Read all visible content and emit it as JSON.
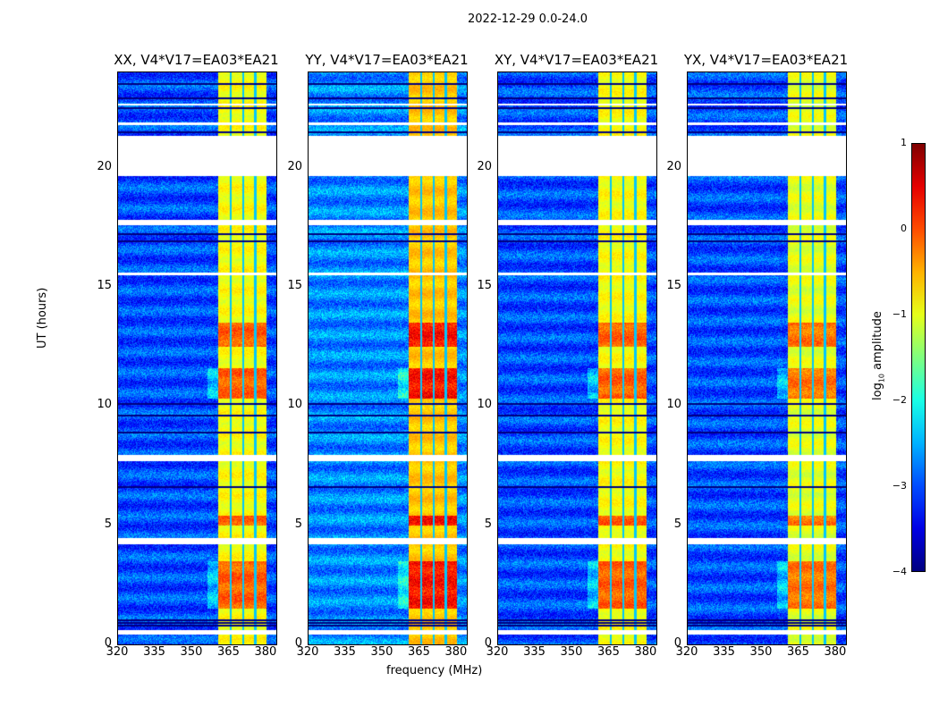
{
  "chart_data": {
    "type": "heatmap",
    "title": "2022-12-29 0.0-24.0",
    "xlabel": "frequency (MHz)",
    "ylabel": "UT (hours)",
    "xlim": [
      320,
      384
    ],
    "ylim": [
      0,
      24
    ],
    "xticks": [
      "320",
      "335",
      "350",
      "365",
      "380"
    ],
    "yticks": [
      "0",
      "5",
      "10",
      "15",
      "20"
    ],
    "colorbar": {
      "label_prefix": "log",
      "label_sub": "10",
      "label_suffix": " amplitude",
      "range": [
        -4,
        1
      ],
      "ticks": [
        "1",
        "0",
        "−1",
        "−2",
        "−3",
        "−4"
      ]
    },
    "panels": [
      {
        "title": "XX, V4*V17=EA03*EA21",
        "band_level": -0.9,
        "bg_level": -3.0
      },
      {
        "title": "YY, V4*V17=EA03*EA21",
        "band_level": -0.6,
        "bg_level": -2.7
      },
      {
        "title": "XY, V4*V17=EA03*EA21",
        "band_level": -0.9,
        "bg_level": -3.0
      },
      {
        "title": "YX, V4*V17=EA03*EA21",
        "band_level": -1.0,
        "bg_level": -3.0
      }
    ],
    "rfi_band_mhz": [
      360.5,
      380
    ],
    "band_gaps_mhz": [
      365.5,
      370.5,
      375.5
    ],
    "hot_intervals_hours": [
      [
        1.5,
        3.5
      ],
      [
        10.3,
        11.6
      ],
      [
        12.5,
        13.5
      ],
      [
        5.0,
        5.4
      ]
    ],
    "flagged_intervals_hours": [
      [
        0.4,
        0.6
      ],
      [
        4.2,
        4.45
      ],
      [
        7.7,
        7.95
      ],
      [
        15.5,
        15.6
      ],
      [
        17.6,
        17.8
      ],
      [
        19.65,
        21.35
      ],
      [
        21.8,
        21.9
      ],
      [
        22.6,
        22.7
      ]
    ],
    "dark_rows_hours": [
      0.8,
      0.9,
      1.0,
      6.6,
      8.9,
      9.6,
      10.1,
      16.9,
      17.2,
      21.5,
      22.5,
      22.9,
      23.5
    ]
  }
}
